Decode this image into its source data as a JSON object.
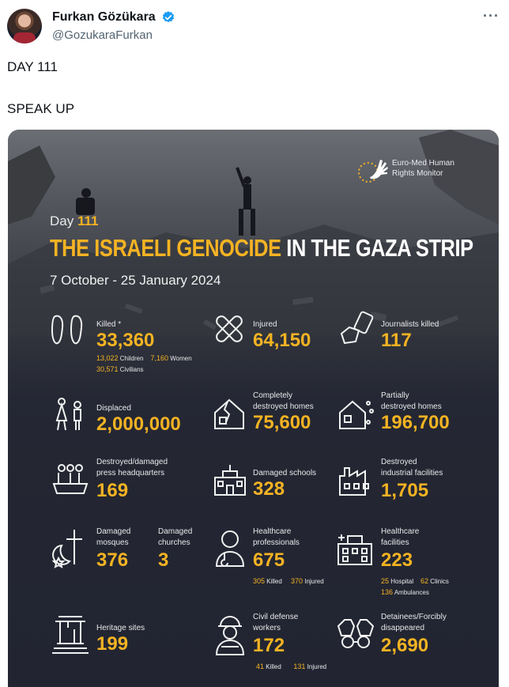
{
  "author": {
    "name": "Furkan Gözükara",
    "handle": "@GozukaraFurkan"
  },
  "tweet": {
    "line1": "DAY 111",
    "line2": "SPEAK UP"
  },
  "icons": {
    "more": "more-horizontal-icon",
    "verified": "verified-badge-icon"
  },
  "colors": {
    "accent": "#f5b323",
    "verified": "#1d9bf0",
    "card_bg": "#222531"
  },
  "infographic": {
    "org": "Euro-Med Human Rights Monitor",
    "day_prefix": "Day",
    "day_number": "111",
    "title_highlight": "THE ISRAELI GENOCIDE",
    "title_rest": "IN THE GAZA STRIP",
    "dates": "7 October - 25 January 2024",
    "stats": {
      "killed": {
        "label": "Killed *",
        "value": "33,360",
        "children_n": "13,022",
        "children_l": "Children",
        "women_n": "7,160",
        "women_l": "Women",
        "civilians_n": "30,571",
        "civilians_l": "Civilians"
      },
      "injured": {
        "label": "Injured",
        "value": "64,150"
      },
      "journalists": {
        "label": "Journalists killed",
        "value": "117"
      },
      "displaced": {
        "label": "Displaced",
        "value": "2,000,000"
      },
      "destroyed_homes": {
        "label1": "Completely",
        "label2": "destroyed homes",
        "value": "75,600"
      },
      "partial_homes": {
        "label1": "Partially",
        "label2": "destroyed homes",
        "value": "196,700"
      },
      "press": {
        "label1": "Destroyed/damaged",
        "label2": "press headquarters",
        "value": "169"
      },
      "schools": {
        "label": "Damaged schools",
        "value": "328"
      },
      "industrial": {
        "label1": "Destroyed",
        "label2": "industrial facilities",
        "value": "1,705"
      },
      "mosques": {
        "label1": "Damaged",
        "label2": "mosques",
        "value": "376"
      },
      "churches": {
        "label1": "Damaged",
        "label2": "churches",
        "value": "3"
      },
      "health_pro": {
        "label1": "Healthcare",
        "label2": "professionals",
        "value": "675",
        "killed_n": "305",
        "killed_l": "Killed",
        "injured_n": "370",
        "injured_l": "Injured"
      },
      "health_fac": {
        "label1": "Healthcare",
        "label2": "facilities",
        "value": "223",
        "hospital_n": "25",
        "hospital_l": "Hospital",
        "clinics_n": "62",
        "clinics_l": "Clinics",
        "amb_n": "136",
        "amb_l": "Ambulances"
      },
      "heritage": {
        "label": "Heritage sites",
        "value": "199"
      },
      "civil": {
        "label1": "Civil defense",
        "label2": "workers",
        "value": "172",
        "killed_n": "41",
        "killed_l": "Killed",
        "injured_n": "131",
        "injured_l": "Injured"
      },
      "detainees": {
        "label1": "Detainees/Forcibly",
        "label2": "disappeared",
        "value": "2,690"
      }
    }
  }
}
